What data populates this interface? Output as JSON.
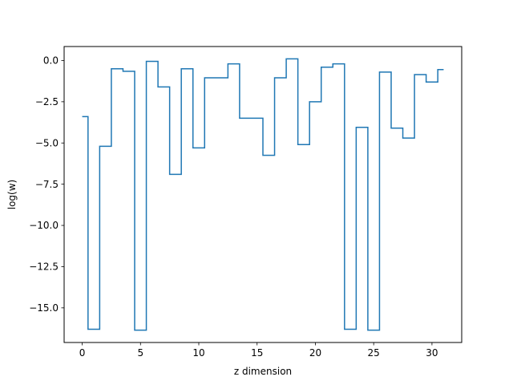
{
  "chart_data": {
    "type": "line",
    "drawstyle": "steps-mid",
    "title": "",
    "xlabel": "z dimension",
    "ylabel": "log(w)",
    "xlim": [
      -1.55,
      32.55
    ],
    "ylim": [
      -17.1,
      0.85
    ],
    "xticks": [
      0,
      5,
      10,
      15,
      20,
      25,
      30
    ],
    "xtick_labels": [
      "0",
      "5",
      "10",
      "15",
      "20",
      "25",
      "30"
    ],
    "yticks": [
      0.0,
      -2.5,
      -5.0,
      -7.5,
      -10.0,
      -12.5,
      -15.0
    ],
    "ytick_labels": [
      "0.0",
      "−2.5",
      "−5.0",
      "−7.5",
      "−10.0",
      "−12.5",
      "−15.0"
    ],
    "grid": false,
    "series": [
      {
        "color": "#1f77b4",
        "x": [
          0,
          1,
          2,
          3,
          4,
          5,
          6,
          7,
          8,
          9,
          10,
          11,
          12,
          13,
          14,
          15,
          16,
          17,
          18,
          19,
          20,
          21,
          22,
          23,
          24,
          25,
          26,
          27,
          28,
          29,
          30,
          31
        ],
        "values": [
          -3.4,
          -16.3,
          -5.2,
          -0.5,
          -0.65,
          -16.35,
          -0.05,
          -1.6,
          -6.9,
          -0.5,
          -5.3,
          -1.05,
          -1.05,
          -0.2,
          -3.5,
          -3.5,
          -5.75,
          -1.05,
          0.1,
          -5.1,
          -2.5,
          -0.4,
          -0.2,
          -16.3,
          -4.05,
          -16.35,
          -0.7,
          -4.1,
          -4.7,
          -0.85,
          -1.3,
          -0.55
        ]
      }
    ]
  }
}
